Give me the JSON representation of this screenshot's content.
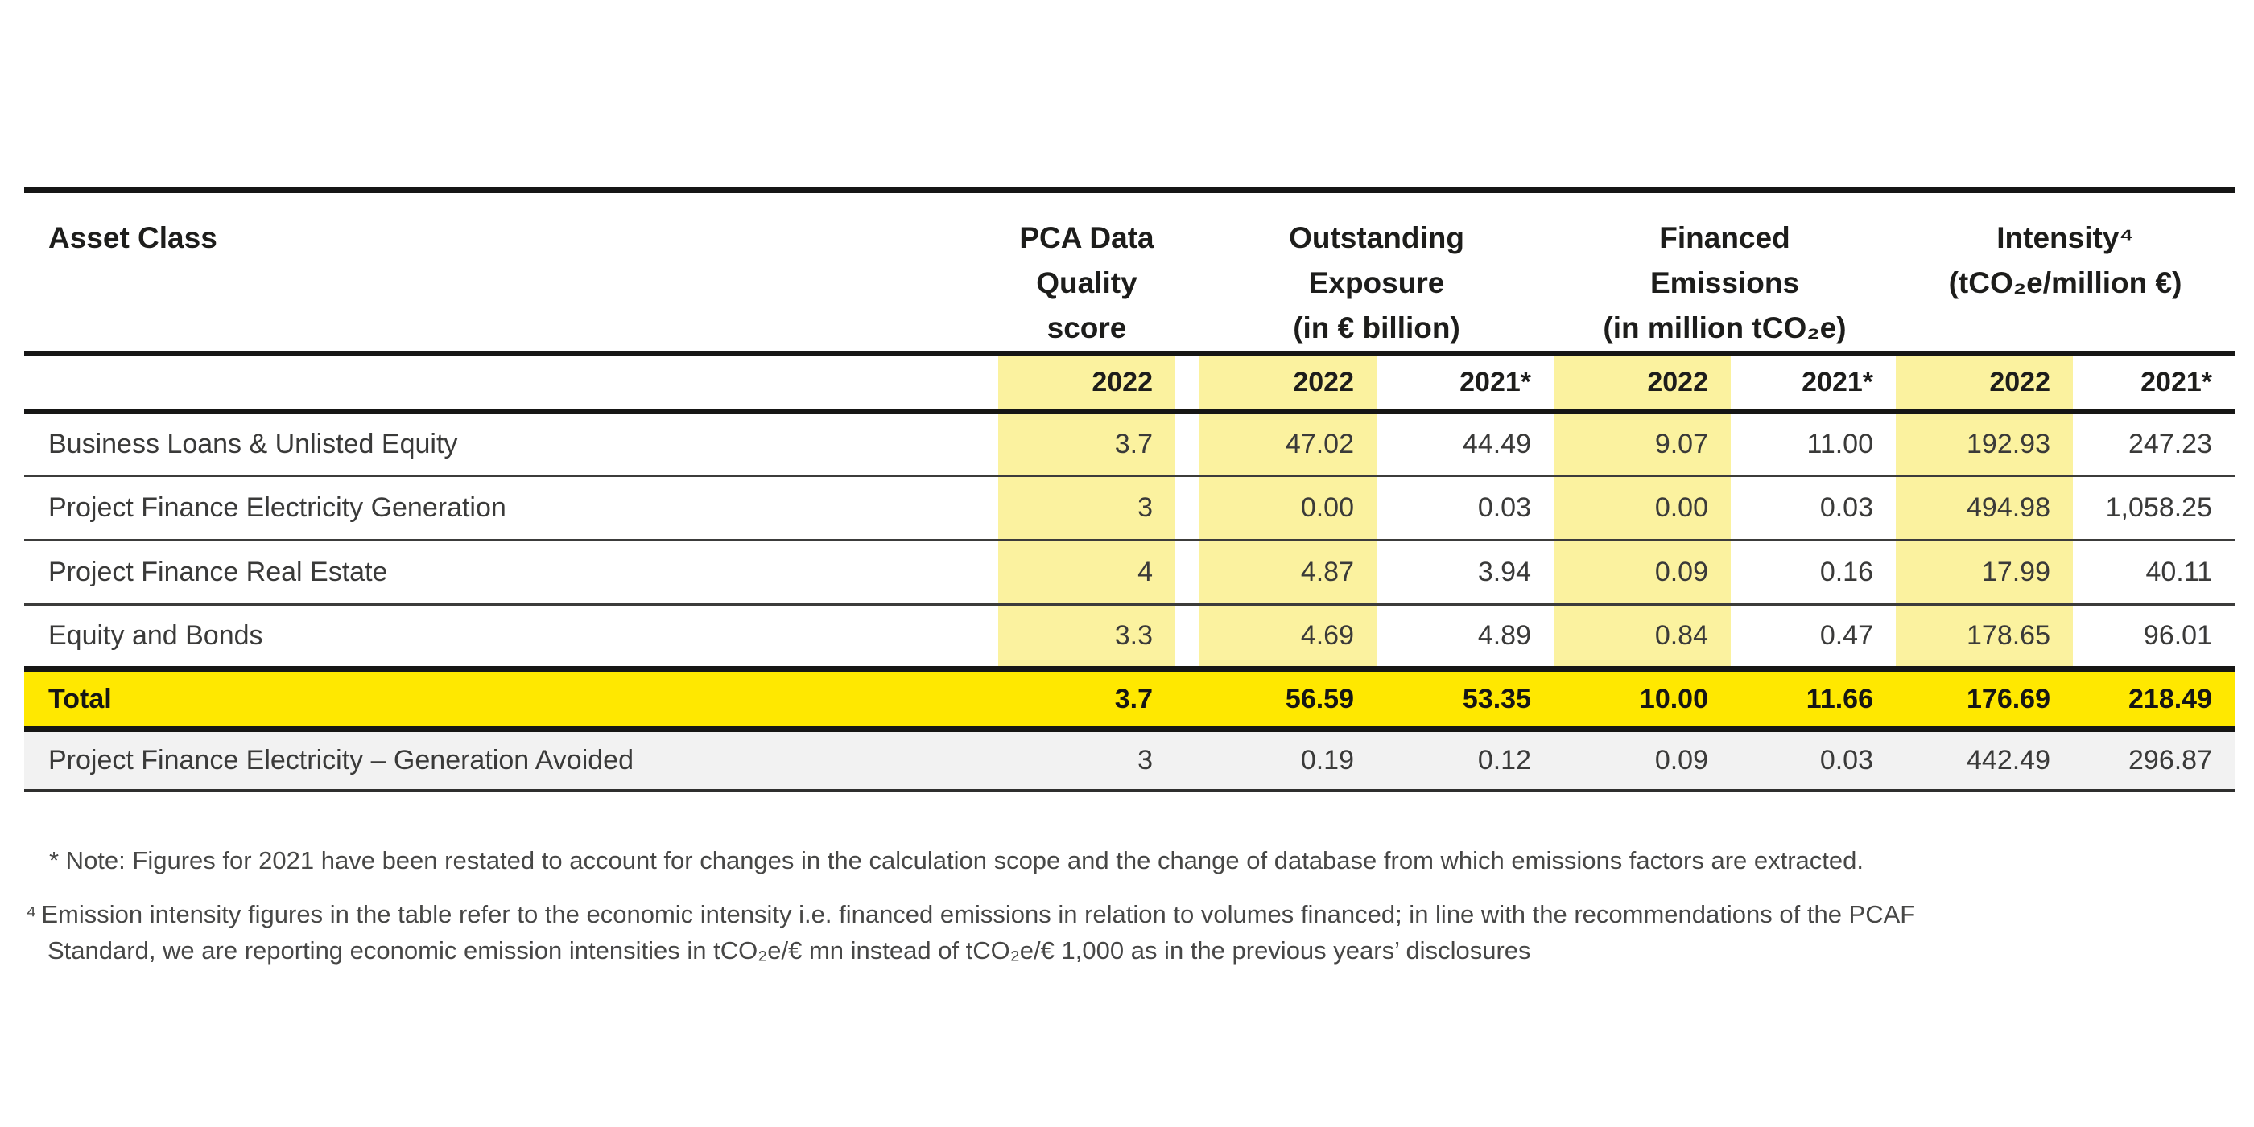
{
  "colors": {
    "highlight_pale_yellow": "#FBF29F",
    "total_bright_yellow": "#FFE800",
    "avoided_row_gray": "#F2F2F2",
    "rule_black": "#161615",
    "rule_thin_gray": "#3C3C3B",
    "text_dark": "#1D1D1B",
    "text_body": "#3A3A39",
    "footnote_gray": "#474746"
  },
  "table": {
    "asset_class_header": "Asset Class",
    "groups": [
      {
        "l1": "PCA Data",
        "l2": "Quality",
        "l3": "score"
      },
      {
        "l1": "Outstanding",
        "l2": "Exposure",
        "l3": "(in € billion)"
      },
      {
        "l1": "Financed",
        "l2": "Emissions",
        "l3": "(in million tCO₂e)"
      },
      {
        "l1": "Intensity⁴",
        "l2": "(tCO₂e/million €)"
      }
    ],
    "year_2022": "2022",
    "year_2021": "2021*",
    "rows": [
      {
        "label": "Business Loans & Unlisted Equity",
        "v": [
          "3.7",
          "47.02",
          "44.49",
          "9.07",
          "11.00",
          "192.93",
          "247.23"
        ]
      },
      {
        "label": "Project Finance Electricity Generation",
        "v": [
          "3",
          "0.00",
          "0.03",
          "0.00",
          "0.03",
          "494.98",
          "1,058.25"
        ]
      },
      {
        "label": "Project Finance Real Estate",
        "v": [
          "4",
          "4.87",
          "3.94",
          "0.09",
          "0.16",
          "17.99",
          "40.11"
        ]
      },
      {
        "label": "Equity and Bonds",
        "v": [
          "3.3",
          "4.69",
          "4.89",
          "0.84",
          "0.47",
          "178.65",
          "96.01"
        ]
      }
    ],
    "total": {
      "label": "Total",
      "v": [
        "3.7",
        "56.59",
        "53.35",
        "10.00",
        "11.66",
        "176.69",
        "218.49"
      ]
    },
    "avoided": {
      "label": "Project Finance Electricity – Generation Avoided",
      "v": [
        "3",
        "0.19",
        "0.12",
        "0.09",
        "0.03",
        "442.49",
        "296.87"
      ]
    }
  },
  "footnotes": {
    "note_line": "* Note: Figures for 2021 have been restated to account for changes in the calculation scope and the change of database from which emissions factors are extracted.",
    "fn4_marker": "⁴",
    "fn4_line1": "Emission intensity figures in the table refer to the economic intensity i.e. financed emissions in relation to volumes financed; in line with the recommendations of the PCAF",
    "fn4_line2": "Standard, we are reporting economic emission intensities in tCO₂e/€ mn instead of tCO₂e/€ 1,000 as in the previous years’ disclosures"
  }
}
